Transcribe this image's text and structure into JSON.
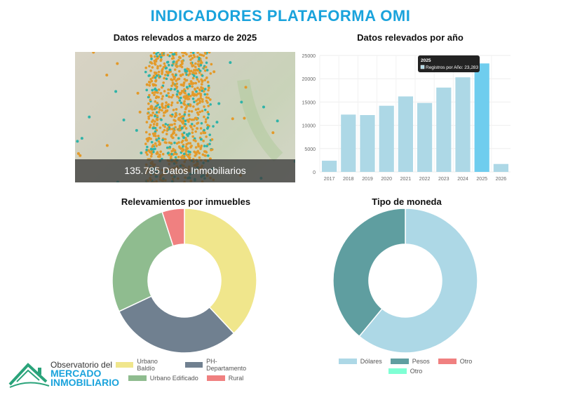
{
  "title": "INDICADORES PLATAFORMA OMI",
  "map": {
    "heading": "Datos relevados a marzo de 2025",
    "caption": "135.785 Datos Inmobiliarios"
  },
  "chart_data": [
    {
      "type": "bar",
      "title": "Datos relevados por año",
      "categories": [
        "2017",
        "2018",
        "2019",
        "2020",
        "2021",
        "2022",
        "2023",
        "2024",
        "2025",
        "2026"
      ],
      "series": [
        {
          "name": "Registros por Año",
          "values": [
            2400,
            12300,
            12200,
            14200,
            16200,
            14800,
            18100,
            20300,
            23283,
            1700
          ]
        }
      ],
      "ylim": [
        0,
        25000
      ],
      "yticks": [
        "0",
        "5000",
        "10000",
        "15000",
        "20000",
        "25000"
      ],
      "grid": true,
      "color": "#add8e6",
      "highlight_color": "#6fcdee",
      "tooltip": {
        "title": "2025",
        "label": "Registros por Año: 23,283"
      }
    },
    {
      "type": "pie",
      "title": "Relevamientos por inmuebles",
      "labels": [
        "Urbano Baldío",
        "PH-Departamento",
        "Urbano Edificado",
        "Rural"
      ],
      "values": [
        38,
        30,
        27,
        5
      ],
      "colors": [
        "#f0e68c",
        "#708090",
        "#8fbc8f",
        "#f08080"
      ]
    },
    {
      "type": "pie",
      "title": "Tipo de moneda",
      "labels": [
        "Dólares",
        "Pesos",
        "Otro",
        "Otro"
      ],
      "values": [
        61,
        39,
        0,
        0
      ],
      "colors": [
        "#add8e6",
        "#5f9ea0",
        "#f08080",
        "#7fffd4"
      ]
    }
  ],
  "logo": {
    "line1": "Observatorio del",
    "line2": "MERCADO",
    "line3": "INMOBILIARIO"
  }
}
